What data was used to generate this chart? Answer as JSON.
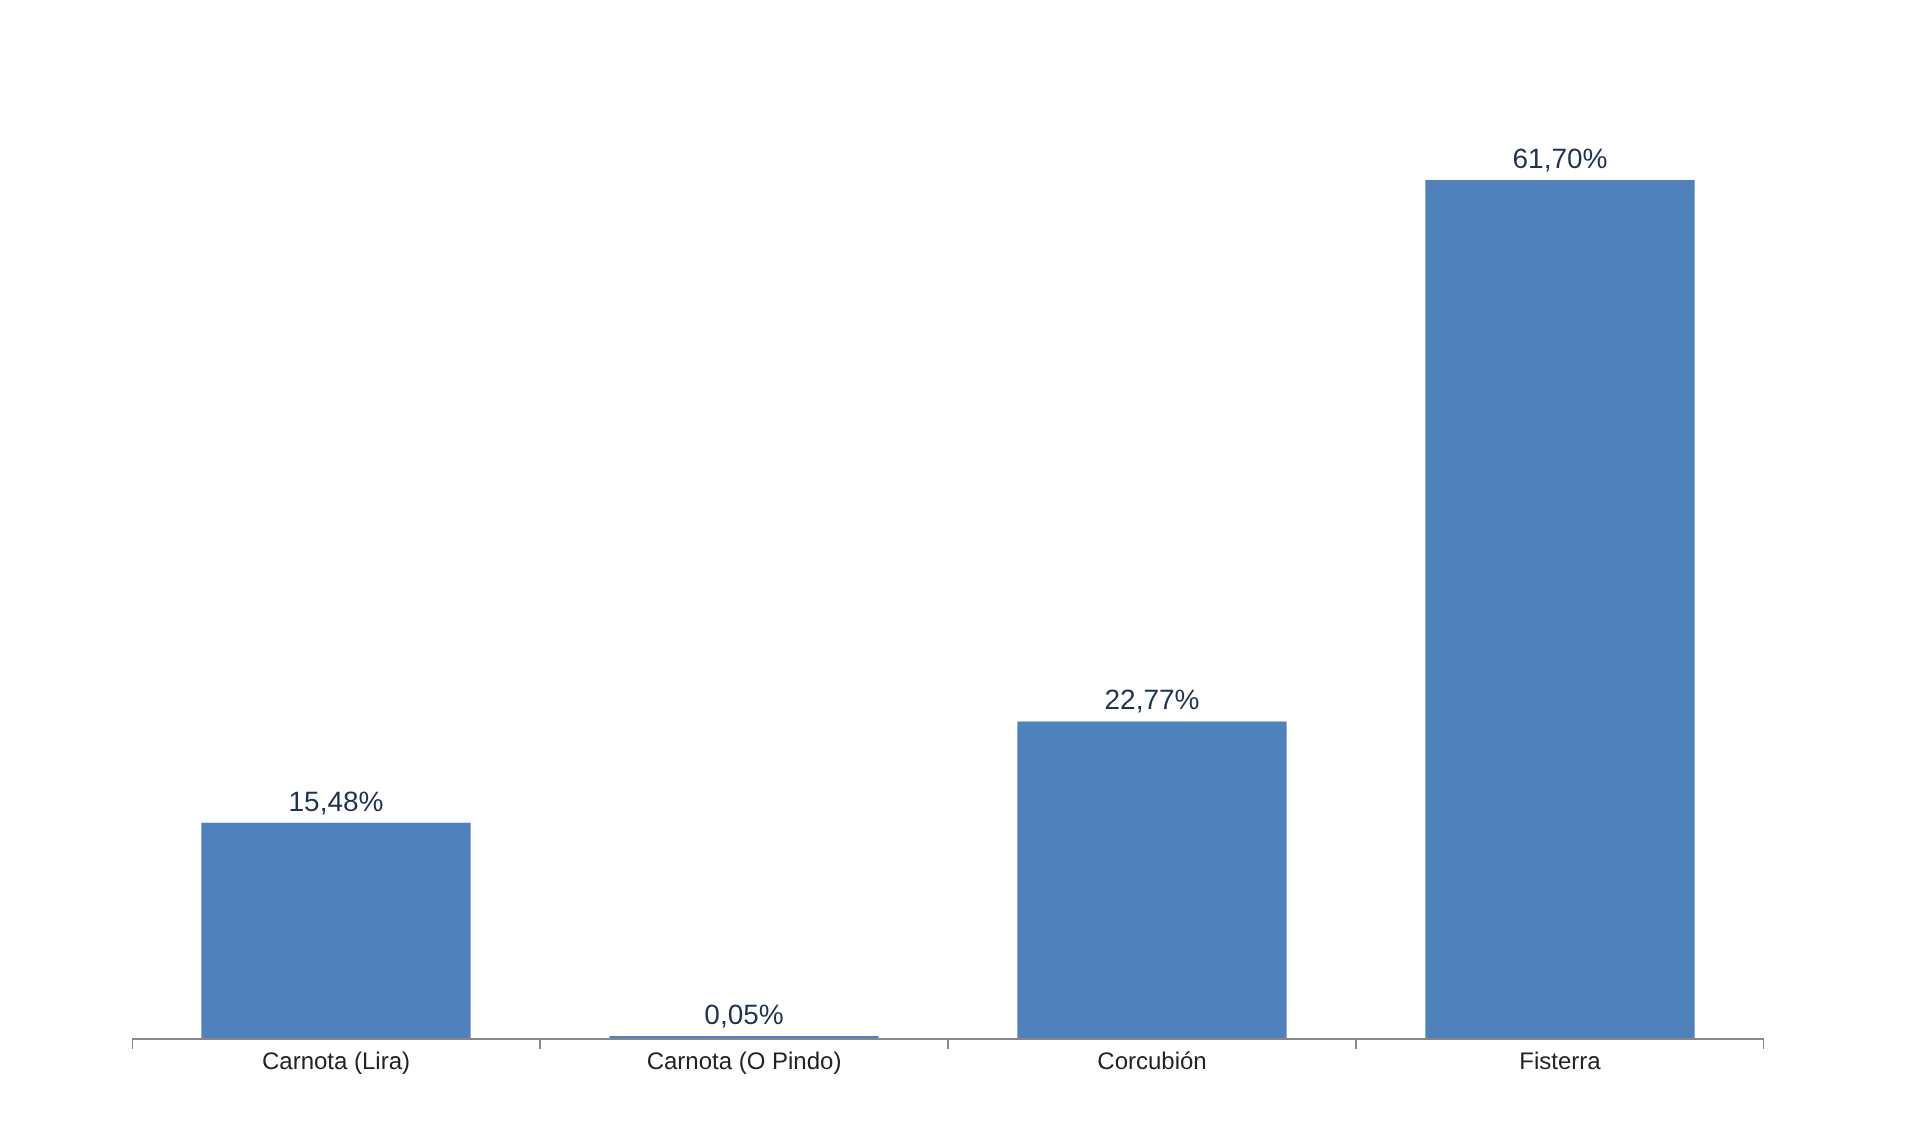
{
  "chart_data": {
    "type": "bar",
    "categories": [
      "Carnota (Lira)",
      "Carnota (O Pindo)",
      "Corcubión",
      "Fisterra"
    ],
    "values": [
      15.48,
      0.05,
      22.77,
      61.7
    ],
    "value_labels": [
      "15,48%",
      "0,05%",
      "22,77%",
      "61,70%"
    ],
    "color": "#4f81bd"
  }
}
